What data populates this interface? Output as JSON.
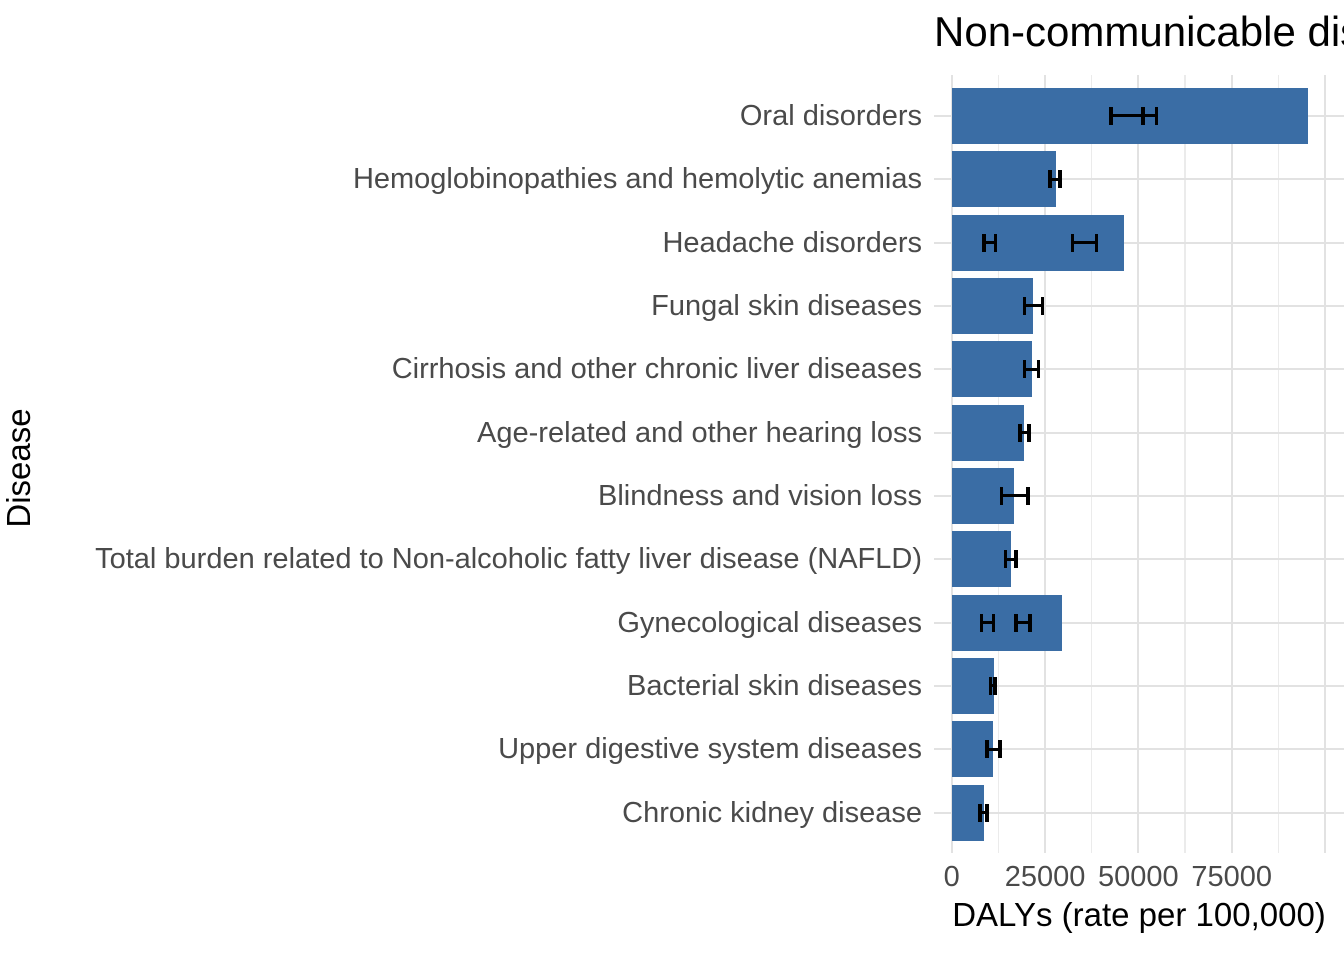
{
  "colors": {
    "bar_fill": "#3a6da5",
    "errorbar": "#000000",
    "grid_major": "#e2e2e2",
    "grid_minor": "#ebebeb",
    "tick_text": "#4a4a4a",
    "title_text": "#000000",
    "background": "#ffffff"
  },
  "chart_data": {
    "type": "bar",
    "orientation": "horizontal",
    "title": "Non-communicable diseases",
    "xlabel": "DALYs (rate per 100,000)",
    "ylabel": "Disease",
    "xlim": [
      0,
      105000
    ],
    "x_tick_labels": [
      "0",
      "25000",
      "50000",
      "75000"
    ],
    "x_tick_values": [
      0,
      25000,
      50000,
      75000
    ],
    "x_major_breaks": [
      0,
      25000,
      50000,
      75000,
      100000
    ],
    "x_minor_breaks": [
      12500,
      37500,
      62500,
      87500
    ],
    "grid": true,
    "legend": "none",
    "categories": [
      "Oral disorders",
      "Hemoglobinopathies and hemolytic anemias",
      "Headache disorders",
      "Fungal skin diseases",
      "Cirrhosis and other chronic liver diseases",
      "Age-related and other hearing loss",
      "Blindness and vision loss",
      "Total burden related to Non-alcoholic fatty liver disease (NAFLD)",
      "Gynecological diseases",
      "Bacterial skin diseases",
      "Upper digestive system diseases",
      "Chronic kidney disease"
    ],
    "values": [
      95500,
      27900,
      46200,
      21900,
      21600,
      19500,
      16700,
      15900,
      29500,
      11200,
      11100,
      8700
    ],
    "error_bars": [
      [
        [
          42700,
          51200
        ],
        [
          51200,
          54900
        ]
      ],
      [
        [
          26300,
          29000
        ]
      ],
      [
        [
          8700,
          11700
        ],
        [
          32400,
          38800
        ]
      ],
      [
        [
          19500,
          24300
        ]
      ],
      [
        [
          19500,
          23200
        ]
      ],
      [
        [
          18300,
          20700
        ]
      ],
      [
        [
          13400,
          20500
        ]
      ],
      [
        [
          14400,
          17200
        ]
      ],
      [
        [
          8000,
          11200
        ],
        [
          17200,
          21000
        ]
      ],
      [
        [
          10400,
          11600
        ]
      ],
      [
        [
          9400,
          12900
        ]
      ],
      [
        [
          7600,
          9500
        ]
      ]
    ]
  }
}
